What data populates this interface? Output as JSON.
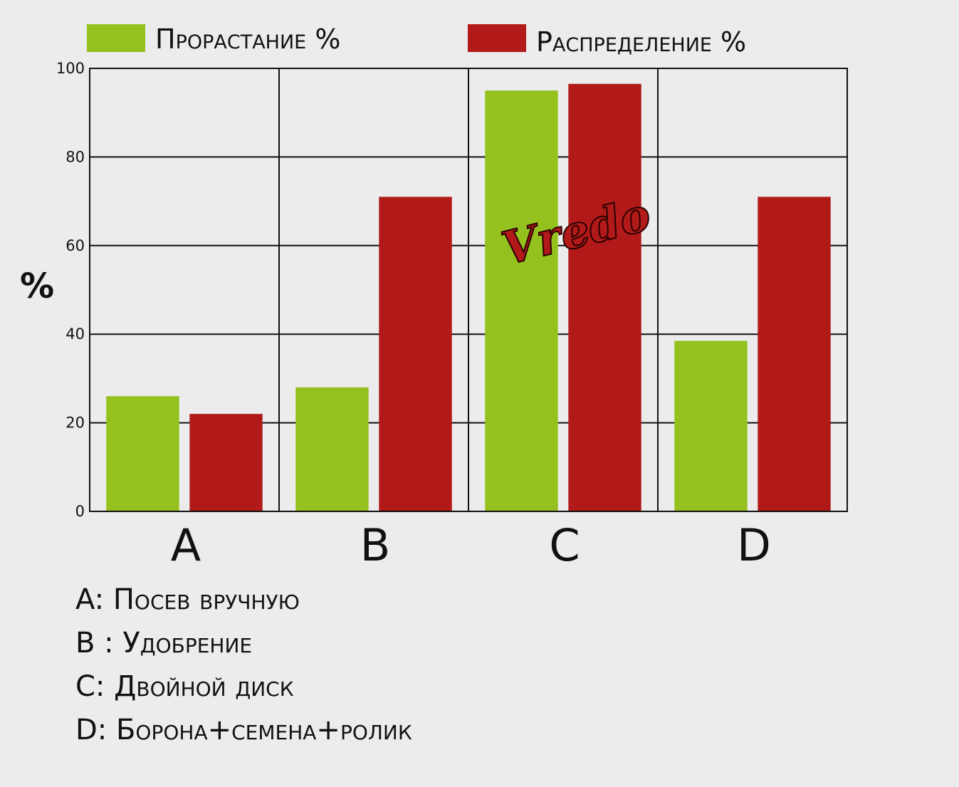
{
  "chart_data": {
    "type": "bar",
    "categories": [
      "A",
      "B",
      "C",
      "D"
    ],
    "series": [
      {
        "name": "Прорастание %",
        "color": "#95c11f",
        "values": [
          26,
          28,
          95,
          38.5
        ]
      },
      {
        "name": "Распределение %",
        "color": "#b21a1a",
        "values": [
          22,
          71,
          96.5,
          71
        ]
      }
    ],
    "xlabel": "",
    "ylabel": "%",
    "ylim": [
      0,
      100
    ],
    "yticks": [
      "0",
      "20",
      "40",
      "60",
      "80",
      "100"
    ],
    "grid": true,
    "legend_position": "top"
  },
  "watermark": {
    "text": "Vredo"
  },
  "notes": [
    "A: Посев вручную",
    "B : Удобрение",
    "C: Двойной диск",
    "D: Борона+семена+ролик"
  ]
}
